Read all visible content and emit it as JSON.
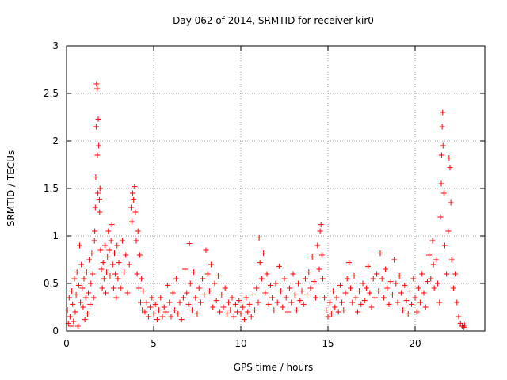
{
  "chart_data": {
    "type": "scatter",
    "title": "Day 062 of 2014, SRMTID for receiver kir0",
    "xlabel": "GPS time / hours",
    "ylabel": "SRMTID / TECUs",
    "xlim": [
      0,
      24
    ],
    "ylim": [
      0,
      3
    ],
    "xticks": [
      0,
      5,
      10,
      15,
      20
    ],
    "yticks": [
      0,
      0.5,
      1,
      1.5,
      2,
      2.5,
      3
    ],
    "xtick_labels": [
      "0",
      "5",
      "10",
      "15",
      "20"
    ],
    "ytick_labels": [
      "0",
      "0.5",
      "1",
      "1.5",
      "2",
      "2.5",
      "3"
    ],
    "grid": true,
    "marker": "+",
    "series": [
      {
        "name": "SRMTID",
        "color": "#ff0000",
        "points": [
          [
            0.05,
            0.22
          ],
          [
            0.1,
            0.08
          ],
          [
            0.15,
            0.35
          ],
          [
            0.2,
            0.15
          ],
          [
            0.25,
            0.05
          ],
          [
            0.3,
            0.42
          ],
          [
            0.35,
            0.28
          ],
          [
            0.4,
            0.1
          ],
          [
            0.45,
            0.55
          ],
          [
            0.5,
            0.2
          ],
          [
            0.55,
            0.38
          ],
          [
            0.6,
            0.62
          ],
          [
            0.65,
            0.05
          ],
          [
            0.7,
            0.48
          ],
          [
            0.75,
            0.9
          ],
          [
            0.8,
            0.3
          ],
          [
            0.85,
            0.7
          ],
          [
            0.9,
            0.45
          ],
          [
            0.95,
            0.25
          ],
          [
            1.0,
            0.55
          ],
          [
            1.05,
            0.12
          ],
          [
            1.1,
            0.35
          ],
          [
            1.15,
            0.62
          ],
          [
            1.2,
            0.18
          ],
          [
            1.25,
            0.4
          ],
          [
            1.3,
            0.75
          ],
          [
            1.35,
            0.28
          ],
          [
            1.4,
            0.5
          ],
          [
            1.45,
            0.82
          ],
          [
            1.5,
            0.6
          ],
          [
            1.55,
            0.35
          ],
          [
            1.6,
            0.95
          ],
          [
            1.62,
            1.05
          ],
          [
            1.65,
            1.3
          ],
          [
            1.68,
            1.62
          ],
          [
            1.7,
            2.15
          ],
          [
            1.72,
            2.6
          ],
          [
            1.75,
            2.55
          ],
          [
            1.77,
            1.85
          ],
          [
            1.8,
            1.45
          ],
          [
            1.82,
            2.23
          ],
          [
            1.85,
            1.95
          ],
          [
            1.88,
            1.38
          ],
          [
            1.9,
            1.25
          ],
          [
            1.92,
            1.5
          ],
          [
            1.95,
            0.85
          ],
          [
            2.0,
            0.65
          ],
          [
            2.05,
            0.45
          ],
          [
            2.1,
            0.72
          ],
          [
            2.15,
            0.55
          ],
          [
            2.2,
            0.9
          ],
          [
            2.25,
            0.4
          ],
          [
            2.3,
            0.62
          ],
          [
            2.35,
            0.78
          ],
          [
            2.4,
            1.05
          ],
          [
            2.45,
            0.85
          ],
          [
            2.5,
            0.58
          ],
          [
            2.55,
            0.95
          ],
          [
            2.6,
            1.12
          ],
          [
            2.65,
            0.7
          ],
          [
            2.7,
            0.45
          ],
          [
            2.75,
            0.82
          ],
          [
            2.8,
            0.6
          ],
          [
            2.85,
            0.35
          ],
          [
            2.9,
            0.9
          ],
          [
            2.95,
            0.55
          ],
          [
            3.0,
            0.72
          ],
          [
            3.1,
            0.45
          ],
          [
            3.2,
            0.95
          ],
          [
            3.3,
            0.62
          ],
          [
            3.4,
            0.8
          ],
          [
            3.5,
            0.4
          ],
          [
            3.6,
            0.7
          ],
          [
            3.7,
            1.3
          ],
          [
            3.75,
            1.15
          ],
          [
            3.8,
            1.45
          ],
          [
            3.85,
            1.38
          ],
          [
            3.9,
            1.52
          ],
          [
            3.95,
            1.25
          ],
          [
            4.0,
            0.95
          ],
          [
            4.05,
            0.6
          ],
          [
            4.1,
            1.05
          ],
          [
            4.15,
            0.45
          ],
          [
            4.2,
            0.8
          ],
          [
            4.25,
            0.3
          ],
          [
            4.3,
            0.55
          ],
          [
            4.35,
            0.22
          ],
          [
            4.4,
            0.42
          ],
          [
            4.5,
            0.2
          ],
          [
            4.6,
            0.3
          ],
          [
            4.7,
            0.15
          ],
          [
            4.8,
            0.25
          ],
          [
            4.9,
            0.35
          ],
          [
            5.0,
            0.18
          ],
          [
            5.1,
            0.28
          ],
          [
            5.2,
            0.12
          ],
          [
            5.3,
            0.22
          ],
          [
            5.4,
            0.35
          ],
          [
            5.5,
            0.15
          ],
          [
            5.6,
            0.25
          ],
          [
            5.7,
            0.2
          ],
          [
            5.8,
            0.48
          ],
          [
            5.9,
            0.3
          ],
          [
            6.0,
            0.15
          ],
          [
            6.1,
            0.4
          ],
          [
            6.2,
            0.22
          ],
          [
            6.3,
            0.55
          ],
          [
            6.4,
            0.18
          ],
          [
            6.5,
            0.3
          ],
          [
            6.6,
            0.12
          ],
          [
            6.7,
            0.35
          ],
          [
            6.8,
            0.65
          ],
          [
            6.9,
            0.4
          ],
          [
            7.0,
            0.28
          ],
          [
            7.05,
            0.92
          ],
          [
            7.1,
            0.5
          ],
          [
            7.2,
            0.22
          ],
          [
            7.3,
            0.62
          ],
          [
            7.4,
            0.35
          ],
          [
            7.5,
            0.18
          ],
          [
            7.6,
            0.45
          ],
          [
            7.7,
            0.3
          ],
          [
            7.8,
            0.55
          ],
          [
            7.9,
            0.38
          ],
          [
            8.0,
            0.85
          ],
          [
            8.1,
            0.6
          ],
          [
            8.2,
            0.42
          ],
          [
            8.3,
            0.7
          ],
          [
            8.4,
            0.25
          ],
          [
            8.5,
            0.5
          ],
          [
            8.6,
            0.32
          ],
          [
            8.7,
            0.58
          ],
          [
            8.8,
            0.2
          ],
          [
            8.9,
            0.38
          ],
          [
            9.0,
            0.25
          ],
          [
            9.1,
            0.45
          ],
          [
            9.2,
            0.18
          ],
          [
            9.3,
            0.3
          ],
          [
            9.4,
            0.22
          ],
          [
            9.5,
            0.35
          ],
          [
            9.6,
            0.15
          ],
          [
            9.7,
            0.28
          ],
          [
            9.8,
            0.2
          ],
          [
            9.9,
            0.32
          ],
          [
            10.0,
            0.18
          ],
          [
            10.1,
            0.25
          ],
          [
            10.2,
            0.12
          ],
          [
            10.3,
            0.35
          ],
          [
            10.4,
            0.2
          ],
          [
            10.5,
            0.28
          ],
          [
            10.6,
            0.15
          ],
          [
            10.7,
            0.38
          ],
          [
            10.8,
            0.22
          ],
          [
            10.9,
            0.45
          ],
          [
            11.0,
            0.3
          ],
          [
            11.05,
            0.98
          ],
          [
            11.1,
            0.72
          ],
          [
            11.2,
            0.55
          ],
          [
            11.3,
            0.82
          ],
          [
            11.4,
            0.4
          ],
          [
            11.5,
            0.6
          ],
          [
            11.6,
            0.28
          ],
          [
            11.7,
            0.48
          ],
          [
            11.8,
            0.35
          ],
          [
            11.9,
            0.22
          ],
          [
            12.0,
            0.5
          ],
          [
            12.1,
            0.3
          ],
          [
            12.2,
            0.68
          ],
          [
            12.3,
            0.42
          ],
          [
            12.4,
            0.25
          ],
          [
            12.5,
            0.55
          ],
          [
            12.6,
            0.35
          ],
          [
            12.7,
            0.2
          ],
          [
            12.8,
            0.45
          ],
          [
            12.9,
            0.3
          ],
          [
            13.0,
            0.6
          ],
          [
            13.1,
            0.38
          ],
          [
            13.2,
            0.22
          ],
          [
            13.3,
            0.5
          ],
          [
            13.4,
            0.32
          ],
          [
            13.5,
            0.42
          ],
          [
            13.6,
            0.28
          ],
          [
            13.7,
            0.55
          ],
          [
            13.8,
            0.38
          ],
          [
            13.9,
            0.62
          ],
          [
            14.0,
            0.45
          ],
          [
            14.1,
            0.78
          ],
          [
            14.2,
            0.52
          ],
          [
            14.3,
            0.35
          ],
          [
            14.4,
            0.9
          ],
          [
            14.5,
            0.65
          ],
          [
            14.55,
            1.05
          ],
          [
            14.6,
            1.12
          ],
          [
            14.65,
            0.8
          ],
          [
            14.7,
            0.55
          ],
          [
            14.8,
            0.35
          ],
          [
            14.9,
            0.22
          ],
          [
            15.0,
            0.15
          ],
          [
            15.1,
            0.3
          ],
          [
            15.2,
            0.18
          ],
          [
            15.3,
            0.42
          ],
          [
            15.4,
            0.25
          ],
          [
            15.5,
            0.35
          ],
          [
            15.6,
            0.2
          ],
          [
            15.7,
            0.48
          ],
          [
            15.8,
            0.3
          ],
          [
            15.9,
            0.22
          ],
          [
            16.0,
            0.4
          ],
          [
            16.1,
            0.55
          ],
          [
            16.2,
            0.72
          ],
          [
            16.3,
            0.45
          ],
          [
            16.4,
            0.3
          ],
          [
            16.5,
            0.58
          ],
          [
            16.6,
            0.35
          ],
          [
            16.7,
            0.2
          ],
          [
            16.8,
            0.42
          ],
          [
            16.9,
            0.28
          ],
          [
            17.0,
            0.5
          ],
          [
            17.1,
            0.32
          ],
          [
            17.2,
            0.45
          ],
          [
            17.3,
            0.68
          ],
          [
            17.4,
            0.4
          ],
          [
            17.5,
            0.25
          ],
          [
            17.6,
            0.55
          ],
          [
            17.7,
            0.35
          ],
          [
            17.8,
            0.6
          ],
          [
            17.9,
            0.42
          ],
          [
            18.0,
            0.82
          ],
          [
            18.1,
            0.55
          ],
          [
            18.2,
            0.35
          ],
          [
            18.3,
            0.65
          ],
          [
            18.4,
            0.45
          ],
          [
            18.5,
            0.28
          ],
          [
            18.6,
            0.52
          ],
          [
            18.7,
            0.38
          ],
          [
            18.8,
            0.75
          ],
          [
            18.9,
            0.5
          ],
          [
            19.0,
            0.3
          ],
          [
            19.1,
            0.58
          ],
          [
            19.2,
            0.4
          ],
          [
            19.3,
            0.22
          ],
          [
            19.4,
            0.48
          ],
          [
            19.5,
            0.32
          ],
          [
            19.6,
            0.18
          ],
          [
            19.7,
            0.42
          ],
          [
            19.8,
            0.28
          ],
          [
            19.9,
            0.55
          ],
          [
            20.0,
            0.35
          ],
          [
            20.1,
            0.2
          ],
          [
            20.2,
            0.45
          ],
          [
            20.3,
            0.3
          ],
          [
            20.4,
            0.6
          ],
          [
            20.5,
            0.4
          ],
          [
            20.6,
            0.25
          ],
          [
            20.7,
            0.52
          ],
          [
            20.8,
            0.8
          ],
          [
            20.9,
            0.55
          ],
          [
            21.0,
            0.95
          ],
          [
            21.05,
            0.7
          ],
          [
            21.1,
            0.45
          ],
          [
            21.2,
            0.75
          ],
          [
            21.3,
            0.5
          ],
          [
            21.4,
            0.3
          ],
          [
            21.45,
            1.2
          ],
          [
            21.5,
            1.55
          ],
          [
            21.52,
            1.85
          ],
          [
            21.55,
            2.15
          ],
          [
            21.58,
            2.3
          ],
          [
            21.6,
            1.95
          ],
          [
            21.65,
            1.45
          ],
          [
            21.7,
            0.9
          ],
          [
            21.8,
            0.6
          ],
          [
            21.9,
            1.05
          ],
          [
            21.95,
            1.82
          ],
          [
            22.0,
            1.72
          ],
          [
            22.05,
            1.35
          ],
          [
            22.1,
            0.75
          ],
          [
            22.2,
            0.45
          ],
          [
            22.3,
            0.6
          ],
          [
            22.4,
            0.3
          ],
          [
            22.5,
            0.15
          ],
          [
            22.6,
            0.08
          ],
          [
            22.7,
            0.05
          ],
          [
            22.8,
            0.04
          ],
          [
            22.85,
            0.06
          ]
        ]
      }
    ]
  }
}
